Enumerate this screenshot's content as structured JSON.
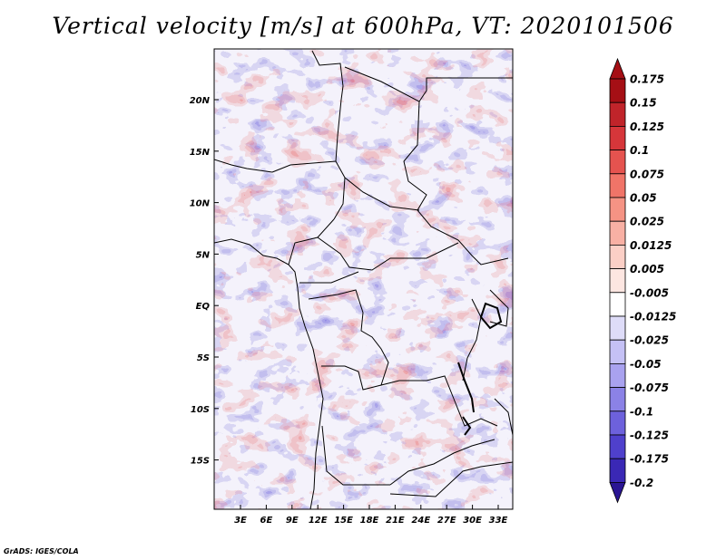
{
  "title": "Vertical velocity [m/s] at 600hPa, VT: 2020101506",
  "credit": "GrADS: IGES/COLA",
  "map": {
    "lat_labels": [
      "20N",
      "15N",
      "10N",
      "5N",
      "EQ",
      "5S",
      "10S",
      "15S"
    ],
    "lon_labels": [
      "3E",
      "6E",
      "9E",
      "12E",
      "15E",
      "18E",
      "21E",
      "24E",
      "27E",
      "30E",
      "33E"
    ]
  },
  "colorbar": {
    "labels": [
      "0.175",
      "0.15",
      "0.125",
      "0.1",
      "0.075",
      "0.05",
      "0.025",
      "0.0125",
      "0.005",
      "-0.005",
      "-0.0125",
      "-0.025",
      "-0.05",
      "-0.075",
      "-0.1",
      "-0.125",
      "-0.175",
      "-0.2"
    ],
    "colors": [
      "#a50f15",
      "#c0242a",
      "#d6363a",
      "#e5534f",
      "#f07468",
      "#f59384",
      "#f8b0a4",
      "#fbcfc6",
      "#fde6e1",
      "#ffffff",
      "#dedcf8",
      "#c5c1f5",
      "#a9a2ef",
      "#8b82e6",
      "#6d61dc",
      "#4f40cc",
      "#3a28b5",
      "#2a1593"
    ]
  }
}
